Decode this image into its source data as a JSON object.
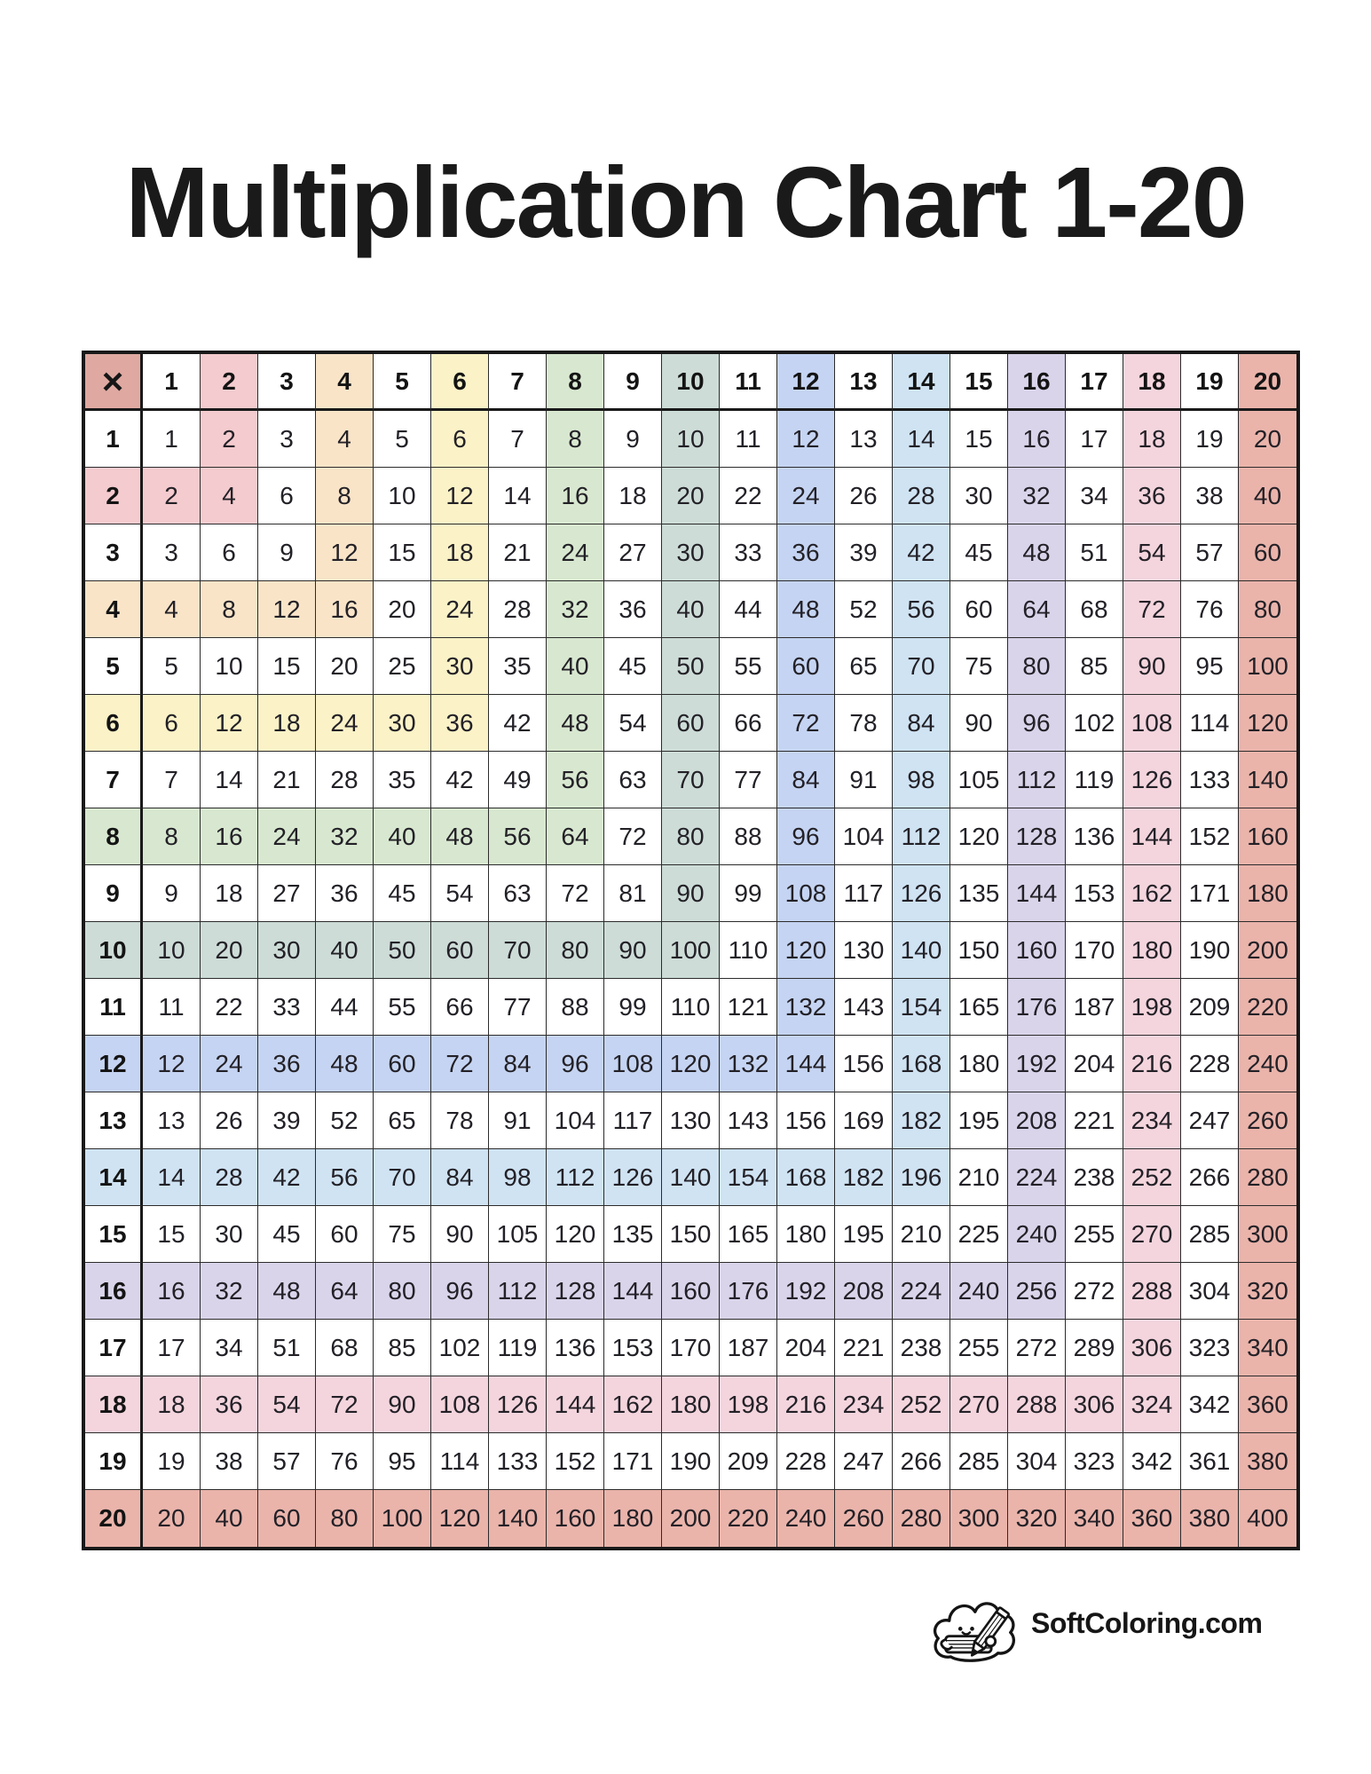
{
  "title": "Multiplication Chart 1-20",
  "table": {
    "operator": "×",
    "col_headers": [
      1,
      2,
      3,
      4,
      5,
      6,
      7,
      8,
      9,
      10,
      11,
      12,
      13,
      14,
      15,
      16,
      17,
      18,
      19,
      20
    ],
    "rows": [
      {
        "header": 1,
        "values": [
          1,
          2,
          3,
          4,
          5,
          6,
          7,
          8,
          9,
          10,
          11,
          12,
          13,
          14,
          15,
          16,
          17,
          18,
          19,
          20
        ]
      },
      {
        "header": 2,
        "values": [
          2,
          4,
          6,
          8,
          10,
          12,
          14,
          16,
          18,
          20,
          22,
          24,
          26,
          28,
          30,
          32,
          34,
          36,
          38,
          40
        ]
      },
      {
        "header": 3,
        "values": [
          3,
          6,
          9,
          12,
          15,
          18,
          21,
          24,
          27,
          30,
          33,
          36,
          39,
          42,
          45,
          48,
          51,
          54,
          57,
          60
        ]
      },
      {
        "header": 4,
        "values": [
          4,
          8,
          12,
          16,
          20,
          24,
          28,
          32,
          36,
          40,
          44,
          48,
          52,
          56,
          60,
          64,
          68,
          72,
          76,
          80
        ]
      },
      {
        "header": 5,
        "values": [
          5,
          10,
          15,
          20,
          25,
          30,
          35,
          40,
          45,
          50,
          55,
          60,
          65,
          70,
          75,
          80,
          85,
          90,
          95,
          100
        ]
      },
      {
        "header": 6,
        "values": [
          6,
          12,
          18,
          24,
          30,
          36,
          42,
          48,
          54,
          60,
          66,
          72,
          78,
          84,
          90,
          96,
          102,
          108,
          114,
          120
        ]
      },
      {
        "header": 7,
        "values": [
          7,
          14,
          21,
          28,
          35,
          42,
          49,
          56,
          63,
          70,
          77,
          84,
          91,
          98,
          105,
          112,
          119,
          126,
          133,
          140
        ]
      },
      {
        "header": 8,
        "values": [
          8,
          16,
          24,
          32,
          40,
          48,
          56,
          64,
          72,
          80,
          88,
          96,
          104,
          112,
          120,
          128,
          136,
          144,
          152,
          160
        ]
      },
      {
        "header": 9,
        "values": [
          9,
          18,
          27,
          36,
          45,
          54,
          63,
          72,
          81,
          90,
          99,
          108,
          117,
          126,
          135,
          144,
          153,
          162,
          171,
          180
        ]
      },
      {
        "header": 10,
        "values": [
          10,
          20,
          30,
          40,
          50,
          60,
          70,
          80,
          90,
          100,
          110,
          120,
          130,
          140,
          150,
          160,
          170,
          180,
          190,
          200
        ]
      },
      {
        "header": 11,
        "values": [
          11,
          22,
          33,
          44,
          55,
          66,
          77,
          88,
          99,
          110,
          121,
          132,
          143,
          154,
          165,
          176,
          187,
          198,
          209,
          220
        ]
      },
      {
        "header": 12,
        "values": [
          12,
          24,
          36,
          48,
          60,
          72,
          84,
          96,
          108,
          120,
          132,
          144,
          156,
          168,
          180,
          192,
          204,
          216,
          228,
          240
        ]
      },
      {
        "header": 13,
        "values": [
          13,
          26,
          39,
          52,
          65,
          78,
          91,
          104,
          117,
          130,
          143,
          156,
          169,
          182,
          195,
          208,
          221,
          234,
          247,
          260
        ]
      },
      {
        "header": 14,
        "values": [
          14,
          28,
          42,
          56,
          70,
          84,
          98,
          112,
          126,
          140,
          154,
          168,
          182,
          196,
          210,
          224,
          238,
          252,
          266,
          280
        ]
      },
      {
        "header": 15,
        "values": [
          15,
          30,
          45,
          60,
          75,
          90,
          105,
          120,
          135,
          150,
          165,
          180,
          195,
          210,
          225,
          240,
          255,
          270,
          285,
          300
        ]
      },
      {
        "header": 16,
        "values": [
          16,
          32,
          48,
          64,
          80,
          96,
          112,
          128,
          144,
          160,
          176,
          192,
          208,
          224,
          240,
          256,
          272,
          288,
          304,
          320
        ]
      },
      {
        "header": 17,
        "values": [
          17,
          34,
          51,
          68,
          85,
          102,
          119,
          136,
          153,
          170,
          187,
          204,
          221,
          238,
          255,
          272,
          289,
          306,
          323,
          340
        ]
      },
      {
        "header": 18,
        "values": [
          18,
          36,
          54,
          72,
          90,
          108,
          126,
          144,
          162,
          180,
          198,
          216,
          234,
          252,
          270,
          288,
          306,
          324,
          342,
          360
        ]
      },
      {
        "header": 19,
        "values": [
          19,
          38,
          57,
          76,
          95,
          114,
          133,
          152,
          171,
          190,
          209,
          228,
          247,
          266,
          285,
          304,
          323,
          342,
          361,
          380
        ]
      },
      {
        "header": 20,
        "values": [
          20,
          40,
          60,
          80,
          100,
          120,
          140,
          160,
          180,
          200,
          220,
          240,
          260,
          280,
          300,
          320,
          340,
          360,
          380,
          400
        ]
      }
    ]
  },
  "colors": {
    "highlights": {
      "2": "#f4cbce",
      "4": "#f9e4c8",
      "6": "#fbf2c7",
      "8": "#d8e8d0",
      "10": "#cddcd7",
      "12": "#c5d4f2",
      "14": "#cfe3f3",
      "16": "#d9d4ea",
      "18": "#f4d5dd",
      "20": "#eab4ab"
    },
    "operator_cell": "#dfa9a1",
    "plain_cell": "#ffffff",
    "grid_line": "#191919",
    "text": "#232127"
  },
  "footer": {
    "brand": "SoftColoring.com",
    "logo": "cloud-with-pencil"
  }
}
